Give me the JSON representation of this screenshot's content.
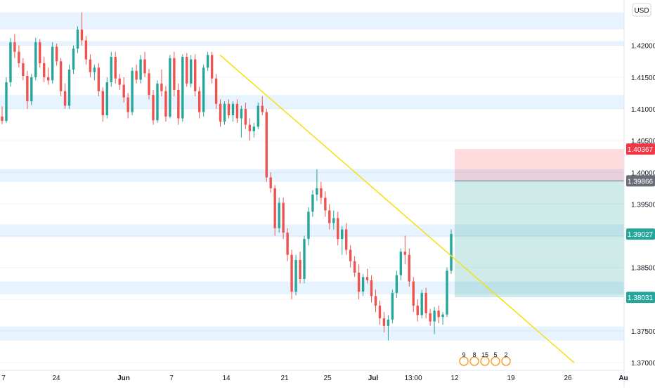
{
  "currency": "USD",
  "colors": {
    "up": "#26a69a",
    "down": "#ef5350",
    "trendline": "#f5e11b",
    "zone": "#2196f3",
    "target_zone": "#26a69a",
    "stop_zone": "#f23645",
    "last_price_bg": "#26a69a",
    "entry_bg": "#6a6d78",
    "stop_bg": "#f23645"
  },
  "chart_data": {
    "type": "candlestick",
    "instrument_currency": "USD",
    "x_axis_labels": [
      "7",
      "24",
      "Jun",
      "7",
      "14",
      "21",
      "25",
      "Jul",
      "13:00",
      "12",
      "19",
      "26",
      "Au"
    ],
    "y_axis_labels": [
      "1.42000",
      "1.41500",
      "1.41000",
      "1.40500",
      "1.40000",
      "1.39500",
      "1.39000",
      "1.38500",
      "1.38000",
      "1.37500",
      "1.37000"
    ],
    "y_range": [
      1.3688,
      1.4265
    ],
    "price_tags": [
      {
        "label": "1.40367",
        "value": 1.40367,
        "role": "stop_loss"
      },
      {
        "label": "1.39866",
        "value": 1.39866,
        "role": "entry"
      },
      {
        "label": "1.39027",
        "value": 1.39027,
        "role": "last_price"
      },
      {
        "label": "1.38031",
        "value": 1.38031,
        "role": "take_profit"
      }
    ],
    "position": {
      "type": "short",
      "entry": 1.39866,
      "stop_loss": 1.40367,
      "take_profit": 1.38031
    },
    "trendline": {
      "start": {
        "date": "Jun 13",
        "price": 1.4185
      },
      "end": {
        "date": "Jul 27",
        "price": 1.37
      }
    },
    "zones": [
      {
        "from": 1.4225,
        "to": 1.4252
      },
      {
        "from": 1.42,
        "to": 1.4207
      },
      {
        "from": 1.41,
        "to": 1.4122
      },
      {
        "from": 1.3985,
        "to": 1.4005
      },
      {
        "from": 1.3898,
        "to": 1.3918
      },
      {
        "from": 1.3808,
        "to": 1.3828
      },
      {
        "from": 1.3735,
        "to": 1.3757
      }
    ],
    "event_markers": [
      "9",
      "8",
      "15",
      "5",
      "2"
    ],
    "series": [
      {
        "name": "candles",
        "ohlc": [
          {
            "o": 1.4088,
            "h": 1.4104,
            "l": 1.4076,
            "c": 1.4081
          },
          {
            "o": 1.4081,
            "h": 1.415,
            "l": 1.4078,
            "c": 1.4142
          },
          {
            "o": 1.4142,
            "h": 1.4212,
            "l": 1.4135,
            "c": 1.4205
          },
          {
            "o": 1.4205,
            "h": 1.4218,
            "l": 1.418,
            "c": 1.419
          },
          {
            "o": 1.419,
            "h": 1.42,
            "l": 1.4165,
            "c": 1.4172
          },
          {
            "o": 1.4172,
            "h": 1.418,
            "l": 1.4145,
            "c": 1.4152
          },
          {
            "o": 1.4152,
            "h": 1.416,
            "l": 1.41,
            "c": 1.4112
          },
          {
            "o": 1.4112,
            "h": 1.4155,
            "l": 1.4106,
            "c": 1.415
          },
          {
            "o": 1.415,
            "h": 1.4212,
            "l": 1.4145,
            "c": 1.4205
          },
          {
            "o": 1.4205,
            "h": 1.421,
            "l": 1.4165,
            "c": 1.4172
          },
          {
            "o": 1.4172,
            "h": 1.4182,
            "l": 1.4142,
            "c": 1.415
          },
          {
            "o": 1.415,
            "h": 1.4165,
            "l": 1.4138,
            "c": 1.4145
          },
          {
            "o": 1.4145,
            "h": 1.4205,
            "l": 1.414,
            "c": 1.4198
          },
          {
            "o": 1.4198,
            "h": 1.4203,
            "l": 1.4168,
            "c": 1.4175
          },
          {
            "o": 1.4175,
            "h": 1.418,
            "l": 1.412,
            "c": 1.4128
          },
          {
            "o": 1.4128,
            "h": 1.414,
            "l": 1.41,
            "c": 1.4105
          },
          {
            "o": 1.4105,
            "h": 1.417,
            "l": 1.41,
            "c": 1.4162
          },
          {
            "o": 1.4162,
            "h": 1.42,
            "l": 1.4155,
            "c": 1.4195
          },
          {
            "o": 1.4195,
            "h": 1.423,
            "l": 1.4188,
            "c": 1.4225
          },
          {
            "o": 1.4225,
            "h": 1.4252,
            "l": 1.42,
            "c": 1.4208
          },
          {
            "o": 1.4208,
            "h": 1.4215,
            "l": 1.417,
            "c": 1.4178
          },
          {
            "o": 1.4178,
            "h": 1.4186,
            "l": 1.415,
            "c": 1.4158
          },
          {
            "o": 1.4158,
            "h": 1.417,
            "l": 1.4145,
            "c": 1.4165
          },
          {
            "o": 1.4165,
            "h": 1.4172,
            "l": 1.412,
            "c": 1.4128
          },
          {
            "o": 1.4128,
            "h": 1.4134,
            "l": 1.408,
            "c": 1.409
          },
          {
            "o": 1.409,
            "h": 1.415,
            "l": 1.4085,
            "c": 1.4142
          },
          {
            "o": 1.4142,
            "h": 1.419,
            "l": 1.4135,
            "c": 1.4182
          },
          {
            "o": 1.4182,
            "h": 1.419,
            "l": 1.414,
            "c": 1.4148
          },
          {
            "o": 1.4148,
            "h": 1.4155,
            "l": 1.413,
            "c": 1.4138
          },
          {
            "o": 1.4138,
            "h": 1.415,
            "l": 1.411,
            "c": 1.4118
          },
          {
            "o": 1.4118,
            "h": 1.4125,
            "l": 1.4085,
            "c": 1.4095
          },
          {
            "o": 1.4095,
            "h": 1.4165,
            "l": 1.409,
            "c": 1.416
          },
          {
            "o": 1.416,
            "h": 1.417,
            "l": 1.414,
            "c": 1.4146
          },
          {
            "o": 1.4146,
            "h": 1.4185,
            "l": 1.414,
            "c": 1.4178
          },
          {
            "o": 1.4178,
            "h": 1.419,
            "l": 1.415,
            "c": 1.4156
          },
          {
            "o": 1.4156,
            "h": 1.4163,
            "l": 1.4115,
            "c": 1.4122
          },
          {
            "o": 1.4122,
            "h": 1.413,
            "l": 1.4075,
            "c": 1.4082
          },
          {
            "o": 1.4082,
            "h": 1.4145,
            "l": 1.4078,
            "c": 1.414
          },
          {
            "o": 1.414,
            "h": 1.4162,
            "l": 1.412,
            "c": 1.4128
          },
          {
            "o": 1.4128,
            "h": 1.4136,
            "l": 1.408,
            "c": 1.4088
          },
          {
            "o": 1.4088,
            "h": 1.4185,
            "l": 1.4085,
            "c": 1.418
          },
          {
            "o": 1.418,
            "h": 1.419,
            "l": 1.412,
            "c": 1.413
          },
          {
            "o": 1.413,
            "h": 1.414,
            "l": 1.4075,
            "c": 1.4085
          },
          {
            "o": 1.4085,
            "h": 1.4186,
            "l": 1.408,
            "c": 1.4182
          },
          {
            "o": 1.4182,
            "h": 1.4188,
            "l": 1.4135,
            "c": 1.414
          },
          {
            "o": 1.414,
            "h": 1.4185,
            "l": 1.4134,
            "c": 1.4178
          },
          {
            "o": 1.4178,
            "h": 1.4186,
            "l": 1.412,
            "c": 1.4128
          },
          {
            "o": 1.4128,
            "h": 1.4135,
            "l": 1.4085,
            "c": 1.4095
          },
          {
            "o": 1.4095,
            "h": 1.417,
            "l": 1.4088,
            "c": 1.4165
          },
          {
            "o": 1.4165,
            "h": 1.419,
            "l": 1.416,
            "c": 1.4185
          },
          {
            "o": 1.4185,
            "h": 1.419,
            "l": 1.414,
            "c": 1.4148
          },
          {
            "o": 1.4148,
            "h": 1.4155,
            "l": 1.41,
            "c": 1.4108
          },
          {
            "o": 1.4108,
            "h": 1.4115,
            "l": 1.4072,
            "c": 1.408
          },
          {
            "o": 1.408,
            "h": 1.4112,
            "l": 1.4075,
            "c": 1.4108
          },
          {
            "o": 1.4108,
            "h": 1.4115,
            "l": 1.4085,
            "c": 1.409
          },
          {
            "o": 1.409,
            "h": 1.4112,
            "l": 1.408,
            "c": 1.4108
          },
          {
            "o": 1.4108,
            "h": 1.4115,
            "l": 1.4078,
            "c": 1.4085
          },
          {
            "o": 1.4085,
            "h": 1.4105,
            "l": 1.4055,
            "c": 1.41
          },
          {
            "o": 1.41,
            "h": 1.411,
            "l": 1.4068,
            "c": 1.4075
          },
          {
            "o": 1.4075,
            "h": 1.4085,
            "l": 1.405,
            "c": 1.4065
          },
          {
            "o": 1.4065,
            "h": 1.4078,
            "l": 1.4055,
            "c": 1.4072
          },
          {
            "o": 1.4072,
            "h": 1.411,
            "l": 1.4068,
            "c": 1.4105
          },
          {
            "o": 1.4105,
            "h": 1.412,
            "l": 1.409,
            "c": 1.4095
          },
          {
            "o": 1.4095,
            "h": 1.41,
            "l": 1.3985,
            "c": 1.3992
          },
          {
            "o": 1.3992,
            "h": 1.4,
            "l": 1.3968,
            "c": 1.3975
          },
          {
            "o": 1.3975,
            "h": 1.398,
            "l": 1.39,
            "c": 1.3912
          },
          {
            "o": 1.3912,
            "h": 1.396,
            "l": 1.3905,
            "c": 1.3952
          },
          {
            "o": 1.3952,
            "h": 1.396,
            "l": 1.3895,
            "c": 1.3905
          },
          {
            "o": 1.3905,
            "h": 1.3912,
            "l": 1.386,
            "c": 1.387
          },
          {
            "o": 1.387,
            "h": 1.3878,
            "l": 1.38,
            "c": 1.3812
          },
          {
            "o": 1.3812,
            "h": 1.387,
            "l": 1.3806,
            "c": 1.3862
          },
          {
            "o": 1.3862,
            "h": 1.3875,
            "l": 1.3825,
            "c": 1.3832
          },
          {
            "o": 1.3832,
            "h": 1.39,
            "l": 1.3825,
            "c": 1.3895
          },
          {
            "o": 1.3895,
            "h": 1.3945,
            "l": 1.3885,
            "c": 1.3938
          },
          {
            "o": 1.3938,
            "h": 1.3972,
            "l": 1.393,
            "c": 1.3965
          },
          {
            "o": 1.3965,
            "h": 1.4005,
            "l": 1.3955,
            "c": 1.3975
          },
          {
            "o": 1.3975,
            "h": 1.3985,
            "l": 1.395,
            "c": 1.396
          },
          {
            "o": 1.396,
            "h": 1.397,
            "l": 1.393,
            "c": 1.394
          },
          {
            "o": 1.394,
            "h": 1.395,
            "l": 1.391,
            "c": 1.392
          },
          {
            "o": 1.392,
            "h": 1.394,
            "l": 1.391,
            "c": 1.3928
          },
          {
            "o": 1.3928,
            "h": 1.3938,
            "l": 1.3885,
            "c": 1.3895
          },
          {
            "o": 1.3895,
            "h": 1.3915,
            "l": 1.387,
            "c": 1.391
          },
          {
            "o": 1.391,
            "h": 1.392,
            "l": 1.387,
            "c": 1.3878
          },
          {
            "o": 1.3878,
            "h": 1.3885,
            "l": 1.385,
            "c": 1.386
          },
          {
            "o": 1.386,
            "h": 1.3868,
            "l": 1.3835,
            "c": 1.3842
          },
          {
            "o": 1.3842,
            "h": 1.3855,
            "l": 1.38,
            "c": 1.3812
          },
          {
            "o": 1.3812,
            "h": 1.384,
            "l": 1.3805,
            "c": 1.3835
          },
          {
            "o": 1.3835,
            "h": 1.3848,
            "l": 1.3825,
            "c": 1.383
          },
          {
            "o": 1.383,
            "h": 1.3838,
            "l": 1.3795,
            "c": 1.3805
          },
          {
            "o": 1.3805,
            "h": 1.3815,
            "l": 1.378,
            "c": 1.379
          },
          {
            "o": 1.379,
            "h": 1.3798,
            "l": 1.376,
            "c": 1.377
          },
          {
            "o": 1.377,
            "h": 1.378,
            "l": 1.3748,
            "c": 1.3758
          },
          {
            "o": 1.3758,
            "h": 1.3775,
            "l": 1.3735,
            "c": 1.3768
          },
          {
            "o": 1.3768,
            "h": 1.3815,
            "l": 1.3762,
            "c": 1.381
          },
          {
            "o": 1.381,
            "h": 1.3845,
            "l": 1.3802,
            "c": 1.3838
          },
          {
            "o": 1.3838,
            "h": 1.388,
            "l": 1.383,
            "c": 1.3875
          },
          {
            "o": 1.3875,
            "h": 1.39,
            "l": 1.3855,
            "c": 1.387
          },
          {
            "o": 1.387,
            "h": 1.388,
            "l": 1.382,
            "c": 1.3828
          },
          {
            "o": 1.3828,
            "h": 1.3835,
            "l": 1.378,
            "c": 1.379
          },
          {
            "o": 1.379,
            "h": 1.38,
            "l": 1.3765,
            "c": 1.3775
          },
          {
            "o": 1.3775,
            "h": 1.3815,
            "l": 1.377,
            "c": 1.381
          },
          {
            "o": 1.381,
            "h": 1.3818,
            "l": 1.377,
            "c": 1.3778
          },
          {
            "o": 1.3778,
            "h": 1.3785,
            "l": 1.3758,
            "c": 1.3765
          },
          {
            "o": 1.3765,
            "h": 1.3788,
            "l": 1.3745,
            "c": 1.3782
          },
          {
            "o": 1.3782,
            "h": 1.379,
            "l": 1.3762,
            "c": 1.3772
          },
          {
            "o": 1.3772,
            "h": 1.378,
            "l": 1.376,
            "c": 1.3776
          },
          {
            "o": 1.3776,
            "h": 1.385,
            "l": 1.3772,
            "c": 1.3845
          },
          {
            "o": 1.3845,
            "h": 1.391,
            "l": 1.384,
            "c": 1.3903
          }
        ]
      }
    ]
  }
}
